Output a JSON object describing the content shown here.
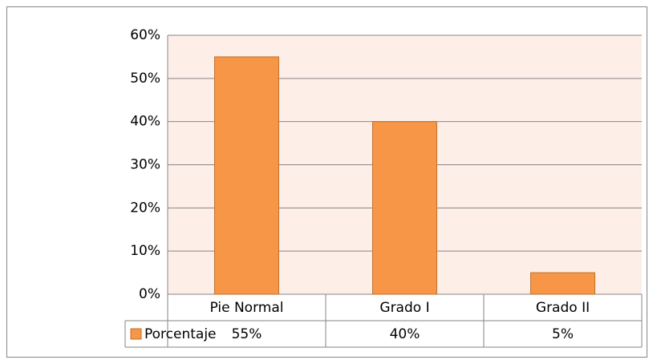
{
  "chart_data": {
    "type": "bar",
    "categories": [
      "Pie Normal",
      "Grado I",
      "Grado II"
    ],
    "series": [
      {
        "name": "Porcentaje",
        "color": "#f79646",
        "values": [
          55,
          40,
          5
        ],
        "value_labels": [
          "55%",
          "40%",
          "5%"
        ]
      }
    ],
    "ylim": [
      0,
      60
    ],
    "yticks": [
      {
        "value": 0,
        "label": "0%"
      },
      {
        "value": 10,
        "label": "10%"
      },
      {
        "value": 20,
        "label": "20%"
      },
      {
        "value": 30,
        "label": "30%"
      },
      {
        "value": 40,
        "label": "40%"
      },
      {
        "value": 50,
        "label": "50%"
      },
      {
        "value": 60,
        "label": "60%"
      }
    ],
    "grid": true
  }
}
